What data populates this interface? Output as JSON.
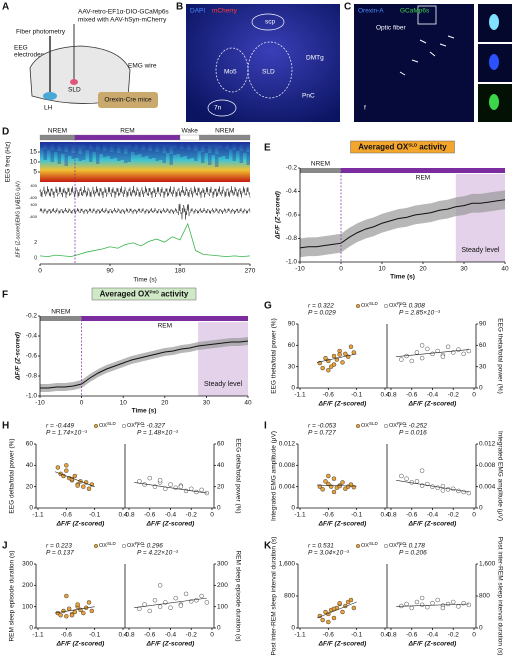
{
  "panel_a": {
    "label": "A",
    "fiber": "Fiber photometry",
    "virus_1": "AAV-retro-EF1α-DIO-GCaMp6s",
    "virus_2": "mixed with AAV-hSyn-mCherry",
    "eeg": "EEG",
    "eeg_2": "electrodes",
    "emg": "EMG wire",
    "sld": "SLD",
    "lh": "LH",
    "mice": "Orexin-Cre mice"
  },
  "panel_b": {
    "label": "B",
    "dapi": "DAPI",
    "mcherry": "mCherry",
    "regions": [
      "scp",
      "Mo5",
      "SLD",
      "DMTg",
      "PnC",
      "7n"
    ]
  },
  "panel_c": {
    "label": "C",
    "orexin": "Orexin-A",
    "gcamp": "GCaMp6s",
    "fiber": "Optic fiber",
    "f": "f"
  },
  "panel_d": {
    "label": "D",
    "states": [
      {
        "name": "NREM",
        "start": 0,
        "end": 45
      },
      {
        "name": "REM",
        "start": 45,
        "end": 180
      },
      {
        "name": "Wake",
        "start": 180,
        "end": 205
      },
      {
        "name": "NREM",
        "start": 205,
        "end": 270
      }
    ],
    "freq_label": "EEG freq (Hz)",
    "freq_ylim": [
      0,
      20
    ],
    "freq_ticks": [
      5,
      10,
      15
    ],
    "eeg_label": "EEG (μV)",
    "emg_label": "EMG (μV)",
    "eeg_ticks": [
      400,
      -400
    ],
    "emg_ticks": [
      400,
      -400
    ],
    "dff_label": "ΔF/F (Z-scored)",
    "dff_ylim": [
      -0.5,
      5
    ],
    "dff_ticks": [
      0,
      2
    ],
    "xlim": [
      0,
      270
    ],
    "xticks": [
      0,
      90,
      180,
      270
    ],
    "xlabel": "Time (s)",
    "dff_x": [
      0,
      10,
      20,
      30,
      40,
      50,
      60,
      70,
      80,
      90,
      100,
      110,
      120,
      130,
      140,
      150,
      160,
      170,
      180,
      190,
      200,
      210,
      220,
      230,
      240,
      250,
      260,
      270
    ],
    "dff": [
      0.3,
      0.2,
      0.4,
      0.3,
      0.2,
      0.5,
      0.8,
      1,
      1.2,
      1.5,
      1.3,
      1.8,
      2,
      1.6,
      2.2,
      2.5,
      2.1,
      2.8,
      2.4,
      4.5,
      1,
      0.5,
      0.4,
      0.3,
      0.2,
      0.3,
      0.2,
      0.3
    ]
  },
  "panel_e": {
    "label": "E",
    "title": [
      "Averaged OX",
      "SLD",
      "activity"
    ],
    "title_bg": "#f4a52c",
    "nrem": "NREM",
    "rem": "REM",
    "steady": "Steady level",
    "steady_range": [
      28,
      40
    ],
    "xlim": [
      -10,
      40
    ],
    "xticks": [
      -10,
      0,
      10,
      20,
      30,
      40
    ],
    "ylim": [
      -1,
      -0.2
    ],
    "yticks": [
      {
        "value": -1,
        "label": "-1.0"
      },
      -0.8,
      -0.6,
      -0.4,
      -0.2
    ],
    "xlabel": "Time (s)",
    "ylabel": "ΔF/F (Z-scored)",
    "error": 0.08,
    "x": [
      -10,
      -8,
      -6,
      -4,
      -2,
      0,
      2,
      4,
      6,
      8,
      10,
      12,
      14,
      16,
      18,
      20,
      22,
      24,
      26,
      28,
      30,
      32,
      34,
      36,
      38,
      40
    ],
    "values": [
      -0.88,
      -0.87,
      -0.87,
      -0.86,
      -0.85,
      -0.84,
      -0.79,
      -0.75,
      -0.72,
      -0.7,
      -0.67,
      -0.65,
      -0.63,
      -0.62,
      -0.6,
      -0.59,
      -0.58,
      -0.56,
      -0.55,
      -0.53,
      -0.52,
      -0.5,
      -0.5,
      -0.49,
      -0.48,
      -0.47
    ]
  },
  "panel_f": {
    "label": "F",
    "title": [
      "Averaged OX",
      "PnO",
      "activity"
    ],
    "title_bg": "#cfe8c6",
    "nrem": "NREM",
    "rem": "REM",
    "steady": "Steady level",
    "steady_range": [
      28,
      40
    ],
    "xlim": [
      -10,
      40
    ],
    "xticks": [
      -10,
      0,
      10,
      20,
      30,
      40
    ],
    "ylim": [
      -1,
      -0.2
    ],
    "yticks": [
      {
        "value": -1,
        "label": "-1.0"
      },
      -0.8,
      -0.6,
      -0.4,
      -0.2
    ],
    "xlabel": "Time (s)",
    "ylabel": "ΔF/F (Z-scored)",
    "error": 0.04,
    "x": [
      -10,
      -8,
      -6,
      -4,
      -2,
      0,
      2,
      4,
      6,
      8,
      10,
      12,
      14,
      16,
      18,
      20,
      22,
      24,
      26,
      28,
      30,
      32,
      34,
      36,
      38,
      40
    ],
    "values": [
      -0.92,
      -0.92,
      -0.91,
      -0.91,
      -0.9,
      -0.88,
      -0.82,
      -0.77,
      -0.73,
      -0.7,
      -0.67,
      -0.64,
      -0.62,
      -0.6,
      -0.58,
      -0.56,
      -0.55,
      -0.53,
      -0.52,
      -0.5,
      -0.49,
      -0.48,
      -0.47,
      -0.46,
      -0.46,
      -0.45
    ]
  },
  "scatter_common": {
    "xlabel": "ΔF/F (Z-scored)",
    "legend": [
      [
        "OX",
        "SLD"
      ],
      [
        "OX",
        "PnO"
      ]
    ],
    "colors": [
      "#e8a33d",
      "#ffffff"
    ],
    "left_xlim": [
      -1.1,
      0.4
    ],
    "left_xticks": [
      -1.1,
      -0.6,
      -0.1,
      0.4
    ],
    "right_xlim": [
      -0.8,
      0
    ],
    "right_xticks": [
      -0.8,
      -0.6,
      -0.4,
      -0.2,
      0
    ]
  },
  "scatter": [
    {
      "label": "G",
      "ylabel": "EEG theta/total power (%)",
      "ylim": [
        0,
        90
      ],
      "yticks": [
        0,
        30,
        60,
        90
      ],
      "stats": [
        [
          "r = 0.322",
          "P = 0.029"
        ],
        [
          "r = 0.308",
          "P = 2.85×10⁻³"
        ]
      ],
      "sets": [
        {
          "x": [
            -0.75,
            -0.7,
            -0.65,
            -0.6,
            -0.55,
            -0.5,
            -0.45,
            -0.4,
            -0.35,
            -0.3,
            -0.25,
            -0.2,
            -0.15,
            -0.6,
            -0.5,
            -0.4
          ],
          "y": [
            35,
            28,
            42,
            38,
            30,
            45,
            40,
            52,
            36,
            48,
            44,
            58,
            50,
            25,
            33,
            47
          ],
          "fit_x": [
            -0.8,
            -0.1
          ],
          "fit_y": [
            36,
            48
          ]
        },
        {
          "x": [
            -0.7,
            -0.65,
            -0.6,
            -0.55,
            -0.5,
            -0.45,
            -0.4,
            -0.35,
            -0.3,
            -0.25,
            -0.2,
            -0.15,
            -0.1,
            -0.05,
            -0.5,
            -0.3
          ],
          "y": [
            40,
            45,
            38,
            50,
            42,
            55,
            48,
            52,
            46,
            58,
            50,
            54,
            48,
            52,
            60,
            44
          ],
          "fit_x": [
            -0.75,
            -0.05
          ],
          "fit_y": [
            44,
            54
          ]
        }
      ]
    },
    {
      "label": "H",
      "ylabel": "EEG delta/total power (%)",
      "ylim": [
        0,
        60
      ],
      "yticks": [
        0,
        20,
        40,
        60
      ],
      "stats": [
        [
          "r = -0.449",
          "P = 1.74×10⁻³"
        ],
        [
          "r = -0.327",
          "P = 1.48×10⁻³"
        ]
      ],
      "sets": [
        {
          "x": [
            -0.75,
            -0.7,
            -0.65,
            -0.6,
            -0.55,
            -0.5,
            -0.45,
            -0.4,
            -0.35,
            -0.3,
            -0.25,
            -0.2,
            -0.15,
            -0.6,
            -0.5,
            -0.4
          ],
          "y": [
            38,
            32,
            30,
            35,
            28,
            26,
            30,
            22,
            25,
            20,
            24,
            18,
            22,
            40,
            27,
            21
          ],
          "fit_x": [
            -0.8,
            -0.1
          ],
          "fit_y": [
            34,
            20
          ]
        },
        {
          "x": [
            -0.7,
            -0.65,
            -0.6,
            -0.55,
            -0.5,
            -0.45,
            -0.4,
            -0.35,
            -0.3,
            -0.25,
            -0.2,
            -0.15,
            -0.1,
            -0.05,
            -0.5,
            -0.3
          ],
          "y": [
            25,
            22,
            28,
            20,
            24,
            18,
            22,
            19,
            21,
            16,
            18,
            15,
            17,
            14,
            26,
            20
          ],
          "fit_x": [
            -0.75,
            -0.05
          ],
          "fit_y": [
            24,
            14
          ]
        }
      ]
    },
    {
      "label": "I",
      "ylabel": "Integrated EMG amplitude (μV)",
      "ylim": [
        0,
        0.012
      ],
      "yticks": [
        0,
        0.004,
        0.008,
        0.012
      ],
      "stats": [
        [
          "r = -0.053",
          "P = 0.727"
        ],
        [
          "r = -0.252",
          "P = 0.016"
        ]
      ],
      "sets": [
        {
          "x": [
            -0.75,
            -0.7,
            -0.65,
            -0.6,
            -0.55,
            -0.5,
            -0.45,
            -0.4,
            -0.35,
            -0.3,
            -0.25,
            -0.2,
            -0.15,
            -0.6,
            -0.5,
            -0.4
          ],
          "y": [
            0.004,
            0.0035,
            0.005,
            0.0045,
            0.004,
            0.0055,
            0.0038,
            0.0042,
            0.0048,
            0.0036,
            0.004,
            0.0044,
            0.0039,
            0.006,
            0.003,
            0.0041
          ],
          "fit_x": [
            -0.8,
            -0.1
          ],
          "fit_y": [
            0.0043,
            0.0041
          ]
        },
        {
          "x": [
            -0.7,
            -0.65,
            -0.6,
            -0.55,
            -0.5,
            -0.45,
            -0.4,
            -0.35,
            -0.3,
            -0.25,
            -0.2,
            -0.15,
            -0.1,
            -0.05,
            -0.5,
            -0.3
          ],
          "y": [
            0.006,
            0.0055,
            0.0048,
            0.005,
            0.0042,
            0.0045,
            0.004,
            0.0038,
            0.0041,
            0.0035,
            0.0036,
            0.0032,
            0.003,
            0.0028,
            0.007,
            0.0033
          ],
          "fit_x": [
            -0.75,
            -0.05
          ],
          "fit_y": [
            0.0052,
            0.003
          ]
        }
      ]
    },
    {
      "label": "J",
      "ylabel": "REM sleep episode duration (s)",
      "ylim": [
        0,
        300
      ],
      "yticks": [
        0,
        100,
        200,
        300
      ],
      "stats": [
        [
          "r = 0.223",
          "P = 0.137"
        ],
        [
          "r = 0.296",
          "P = 4.22×10⁻³"
        ]
      ],
      "sets": [
        {
          "x": [
            -0.75,
            -0.7,
            -0.65,
            -0.6,
            -0.55,
            -0.5,
            -0.45,
            -0.4,
            -0.35,
            -0.3,
            -0.25,
            -0.2,
            -0.15,
            -0.6,
            -0.5,
            -0.4
          ],
          "y": [
            70,
            60,
            80,
            55,
            90,
            65,
            75,
            100,
            85,
            70,
            95,
            120,
            80,
            150,
            60,
            110
          ],
          "fit_x": [
            -0.8,
            -0.1
          ],
          "fit_y": [
            70,
            100
          ]
        },
        {
          "x": [
            -0.7,
            -0.65,
            -0.6,
            -0.55,
            -0.5,
            -0.45,
            -0.4,
            -0.35,
            -0.3,
            -0.25,
            -0.2,
            -0.15,
            -0.1,
            -0.05,
            -0.5,
            -0.3
          ],
          "y": [
            90,
            110,
            80,
            130,
            100,
            120,
            95,
            140,
            110,
            160,
            125,
            130,
            150,
            120,
            200,
            105
          ],
          "fit_x": [
            -0.75,
            -0.05
          ],
          "fit_y": [
            95,
            140
          ]
        }
      ]
    },
    {
      "label": "K",
      "ylabel": "Post inter-REM sleep interval duration (s)",
      "ylim": [
        0,
        1600
      ],
      "yticks": [
        0,
        800,
        {
          "value": 1600,
          "label": "1,600"
        }
      ],
      "stats": [
        [
          "r = 0.531",
          "P = 3.04×10⁻³"
        ],
        [
          "r = 0.178",
          "P = 0.206"
        ]
      ],
      "sets": [
        {
          "x": [
            -0.75,
            -0.7,
            -0.65,
            -0.6,
            -0.55,
            -0.5,
            -0.45,
            -0.4,
            -0.35,
            -0.3,
            -0.25,
            -0.2,
            -0.15,
            -0.6,
            -0.5,
            -0.4
          ],
          "y": [
            300,
            200,
            400,
            350,
            450,
            250,
            500,
            600,
            400,
            550,
            650,
            700,
            500,
            150,
            480,
            620
          ],
          "fit_x": [
            -0.8,
            -0.1
          ],
          "fit_y": [
            250,
            650
          ]
        },
        {
          "x": [
            -0.7,
            -0.65,
            -0.6,
            -0.55,
            -0.5,
            -0.45,
            -0.4,
            -0.35,
            -0.3,
            -0.25,
            -0.2,
            -0.15,
            -0.1,
            -0.05,
            -0.5,
            -0.3
          ],
          "y": [
            550,
            600,
            500,
            650,
            580,
            520,
            620,
            700,
            560,
            600,
            650,
            540,
            620,
            580,
            750,
            500
          ],
          "fit_x": [
            -0.75,
            -0.05
          ],
          "fit_y": [
            540,
            600
          ]
        }
      ]
    }
  ]
}
